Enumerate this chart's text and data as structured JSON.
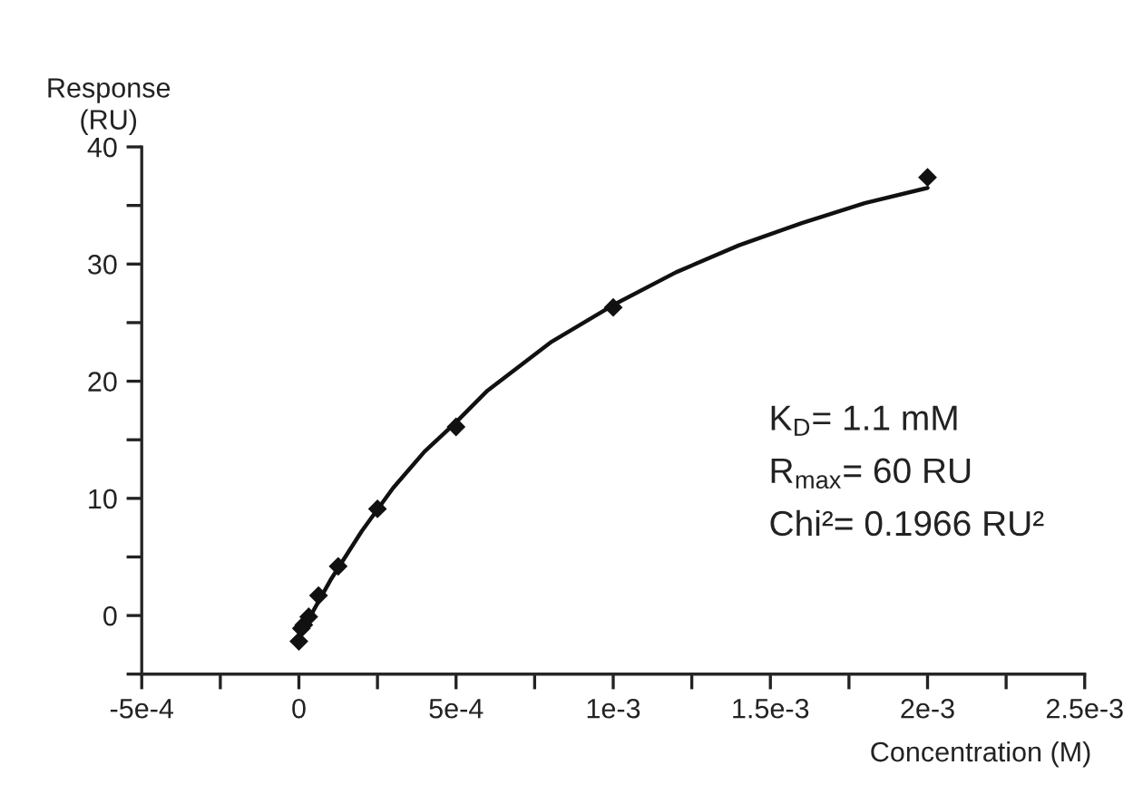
{
  "chart_data": {
    "type": "scatter",
    "xlabel": "Concentration (M)",
    "ylabel": "Response\n(RU)",
    "xlim": [
      -0.0005,
      0.0025
    ],
    "ylim": [
      -5,
      40
    ],
    "xticks": [
      {
        "value": -0.0005,
        "label": "-5e-4"
      },
      {
        "value": -0.00025,
        "label": null
      },
      {
        "value": 0,
        "label": "0"
      },
      {
        "value": 0.00025,
        "label": null
      },
      {
        "value": 0.0005,
        "label": "5e-4"
      },
      {
        "value": 0.00075,
        "label": null
      },
      {
        "value": 0.001,
        "label": "1e-3"
      },
      {
        "value": 0.00125,
        "label": null
      },
      {
        "value": 0.0015,
        "label": "1.5e-3"
      },
      {
        "value": 0.00175,
        "label": null
      },
      {
        "value": 0.002,
        "label": "2e-3"
      },
      {
        "value": 0.00225,
        "label": null
      },
      {
        "value": 0.0025,
        "label": "2.5e-3"
      }
    ],
    "yticks": [
      {
        "value": -5,
        "label": null
      },
      0,
      {
        "value": 5,
        "label": null
      },
      10,
      {
        "value": 15,
        "label": null
      },
      20,
      {
        "value": 25,
        "label": null
      },
      30,
      {
        "value": 35,
        "label": null
      },
      40
    ],
    "grid": false,
    "legend": false,
    "series": [
      {
        "marker": "diamond",
        "color": "#111111",
        "x": [
          0,
          7.8e-06,
          1.56e-05,
          3.13e-05,
          6.25e-05,
          0.000125,
          0.00025,
          0.0005,
          0.001,
          0.002
        ],
        "values": [
          -2.2,
          -1.1,
          -0.8,
          -0.1,
          1.7,
          4.2,
          9.1,
          16.1,
          26.3,
          37.4
        ]
      },
      {
        "type": "line",
        "marker": "none",
        "line_style": "solid",
        "color": "#111111",
        "x": [
          0,
          5e-05,
          0.0001,
          0.0002,
          0.0003,
          0.0004,
          0.0005,
          0.0006,
          0.0008,
          0.001,
          0.0012,
          0.0014,
          0.0016,
          0.0018,
          0.002
        ],
        "values": [
          -2,
          0.6,
          3.0,
          7.2,
          10.9,
          14.0,
          16.5,
          19.2,
          23.3,
          26.5,
          29.3,
          31.6,
          33.5,
          35.2,
          36.5
        ]
      }
    ],
    "annotations": [
      "K$_{D}$= 1.1 mM",
      "R$_{max}$= 60 RU",
      "Chi²= 0.1966 RU²"
    ]
  }
}
